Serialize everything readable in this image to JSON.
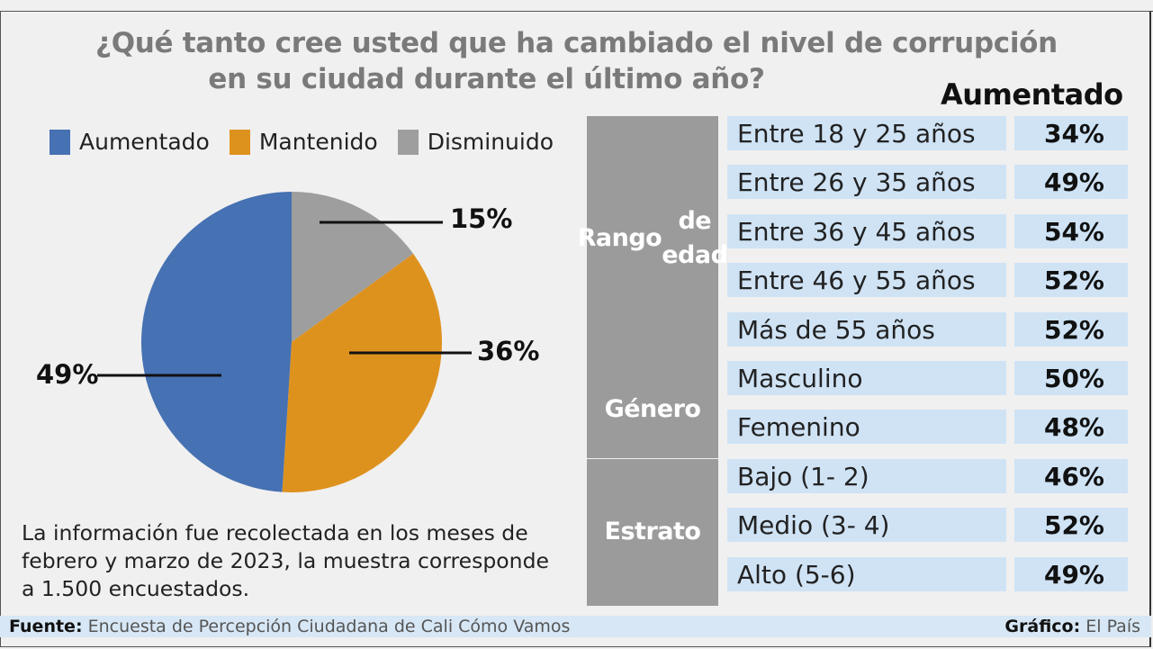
{
  "title_line1": "¿Qué tanto cree usted que ha cambiado el nivel de corrupción",
  "title_line2": "en su ciudad durante el último año?",
  "colors": {
    "aumentado": "#4671b2",
    "mantenido": "#de921e",
    "disminuido": "#9e9e9e"
  },
  "legend": [
    {
      "label": "Aumentado",
      "color": "#4671b2"
    },
    {
      "label": "Mantenido",
      "color": "#de921e"
    },
    {
      "label": "Disminuido",
      "color": "#9e9e9e"
    }
  ],
  "chart_data": {
    "type": "pie",
    "title": "¿Qué tanto cree usted que ha cambiado el nivel de corrupción en su ciudad durante el último año?",
    "slices": [
      {
        "label": "Disminuido",
        "value": 15,
        "display": "15%",
        "color": "#9e9e9e"
      },
      {
        "label": "Mantenido",
        "value": 36,
        "display": "36%",
        "color": "#de921e"
      },
      {
        "label": "Aumentado",
        "value": 49,
        "display": "49%",
        "color": "#4671b2"
      }
    ],
    "legend_position": "top"
  },
  "table": {
    "header": "Aumentado",
    "groups": [
      {
        "name_lines": [
          "Rango",
          "de edad"
        ],
        "rows": [
          {
            "label": "Entre 18 y 25 años",
            "value": "34%"
          },
          {
            "label": "Entre 26 y 35 años",
            "value": "49%"
          },
          {
            "label": "Entre 36 y 45 años",
            "value": "54%"
          },
          {
            "label": "Entre 46 y 55 años",
            "value": "52%"
          },
          {
            "label": "Más de 55 años",
            "value": "52%"
          }
        ]
      },
      {
        "name_lines": [
          "Género"
        ],
        "rows": [
          {
            "label": "Masculino",
            "value": "50%"
          },
          {
            "label": "Femenino",
            "value": "48%"
          }
        ]
      },
      {
        "name_lines": [
          "Estrato"
        ],
        "rows": [
          {
            "label": "Bajo (1- 2)",
            "value": "46%"
          },
          {
            "label": "Medio (3- 4)",
            "value": "52%"
          },
          {
            "label": "Alto (5-6)",
            "value": "49%"
          }
        ]
      }
    ]
  },
  "note": "La información fue recolectada en los meses de febrero y marzo de 2023, la muestra corresponde a 1.500 encuestados.",
  "footer": {
    "source_label": "Fuente:",
    "source_text": "Encuesta de Percepción Ciudadana de Cali Cómo Vamos",
    "credit_label": "Gráfico:",
    "credit_text": "El País"
  }
}
